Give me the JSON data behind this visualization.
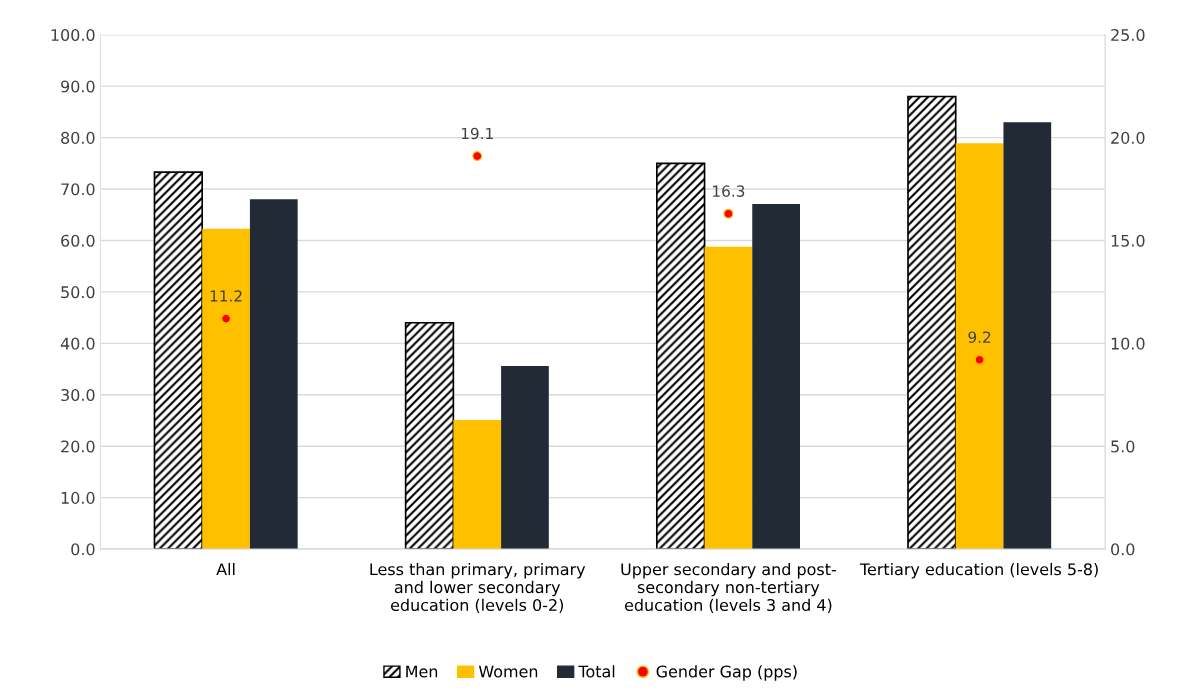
{
  "chart_data": {
    "type": "bar",
    "categories": [
      "All",
      "Less than primary, primary\nand lower secondary\neducation (levels 0-2)",
      "Upper secondary and post-\nsecondary non-tertiary\neducation (levels 3 and 4)",
      "Tertiary education (levels 5-8)"
    ],
    "series": [
      {
        "name": "Men",
        "color": "#000000",
        "values": [
          73.3,
          44.0,
          75.0,
          88.0
        ]
      },
      {
        "name": "Women",
        "color": "#ffc000",
        "values": [
          62.3,
          25.1,
          58.8,
          78.9
        ]
      },
      {
        "name": "Total",
        "color": "#222a35",
        "values": [
          68.0,
          35.6,
          67.1,
          83.0
        ]
      },
      {
        "name": "Gender Gap (pps)",
        "type": "scatter",
        "axis": "y2",
        "color": "#ff0000",
        "marker": "circle",
        "values": [
          11.2,
          19.1,
          16.3,
          9.2
        ],
        "value_labels": [
          "11.2",
          "19.1",
          "16.3",
          "9.2"
        ]
      }
    ],
    "ylim": [
      0,
      100
    ],
    "yticks": [
      {
        "value": 0,
        "label": "0.0"
      },
      {
        "value": 10,
        "label": "10.0"
      },
      {
        "value": 20,
        "label": "20.0"
      },
      {
        "value": 30,
        "label": "30.0"
      },
      {
        "value": 40,
        "label": "40.0"
      },
      {
        "value": 50,
        "label": "50.0"
      },
      {
        "value": 60,
        "label": "60.0"
      },
      {
        "value": 70,
        "label": "70.0"
      },
      {
        "value": 80,
        "label": "80.0"
      },
      {
        "value": 90,
        "label": "90.0"
      },
      {
        "value": 100,
        "label": "100.0"
      }
    ],
    "y2lim": [
      0,
      25
    ],
    "y2ticks": [
      {
        "value": 0,
        "label": "0.0"
      },
      {
        "value": 5,
        "label": "5.0"
      },
      {
        "value": 10,
        "label": "10.0"
      },
      {
        "value": 15,
        "label": "15.0"
      },
      {
        "value": 20,
        "label": "20.0"
      },
      {
        "value": 25,
        "label": "25.0"
      }
    ],
    "grid": "y",
    "legend": "bottom"
  }
}
